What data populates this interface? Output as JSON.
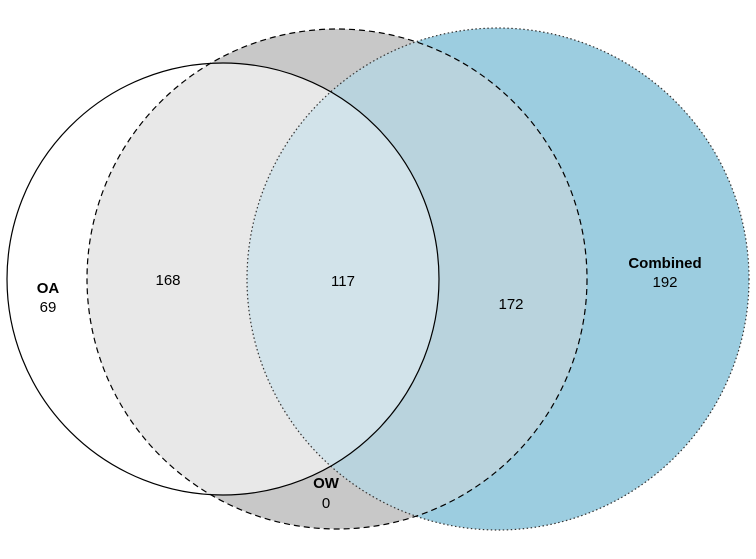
{
  "sets": [
    {
      "name": "OA",
      "only_count": "69",
      "fill": "#ffffff",
      "stroke": "#000000",
      "line_style": "solid"
    },
    {
      "name": "OW",
      "only_count": "0",
      "fill": "#c8c8c8",
      "stroke": "#000000",
      "line_style": "dashed"
    },
    {
      "name": "Combined",
      "only_count": "192",
      "fill": "#9ccde0",
      "stroke": "#333333",
      "line_style": "dotted"
    }
  ],
  "overlaps": {
    "oa_ow": "168",
    "oa_ow_combined": "117",
    "ow_combined": "172"
  },
  "region_colors": {
    "oa_ow": "#e8e8e8",
    "oa_ow_combined": "#d2e3ea",
    "ow_combined": "#b9d3dd"
  }
}
